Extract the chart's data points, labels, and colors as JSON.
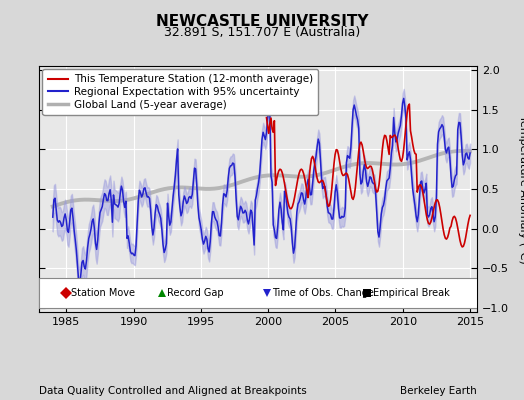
{
  "title": "NEWCASTLE UNIVERSITY",
  "subtitle": "32.891 S, 151.707 E (Australia)",
  "xlabel_left": "Data Quality Controlled and Aligned at Breakpoints",
  "xlabel_right": "Berkeley Earth",
  "ylabel": "Temperature Anomaly (°C)",
  "xlim": [
    1983.0,
    2015.5
  ],
  "ylim": [
    -1.05,
    2.05
  ],
  "yticks": [
    -1,
    -0.5,
    0,
    0.5,
    1,
    1.5,
    2
  ],
  "xticks": [
    1985,
    1990,
    1995,
    2000,
    2005,
    2010,
    2015
  ],
  "background_color": "#d8d8d8",
  "plot_bg_color": "#e8e8e8",
  "grid_color": "#ffffff",
  "red_color": "#cc0000",
  "blue_color": "#2222cc",
  "blue_fill_color": "#9999dd",
  "gray_color": "#b0b0b0",
  "record_gap_x": 2001.3,
  "record_gap_y": -0.75,
  "title_fontsize": 11,
  "subtitle_fontsize": 9,
  "tick_fontsize": 8,
  "ylabel_fontsize": 8,
  "footer_fontsize": 7.5,
  "legend_fontsize": 7.5
}
